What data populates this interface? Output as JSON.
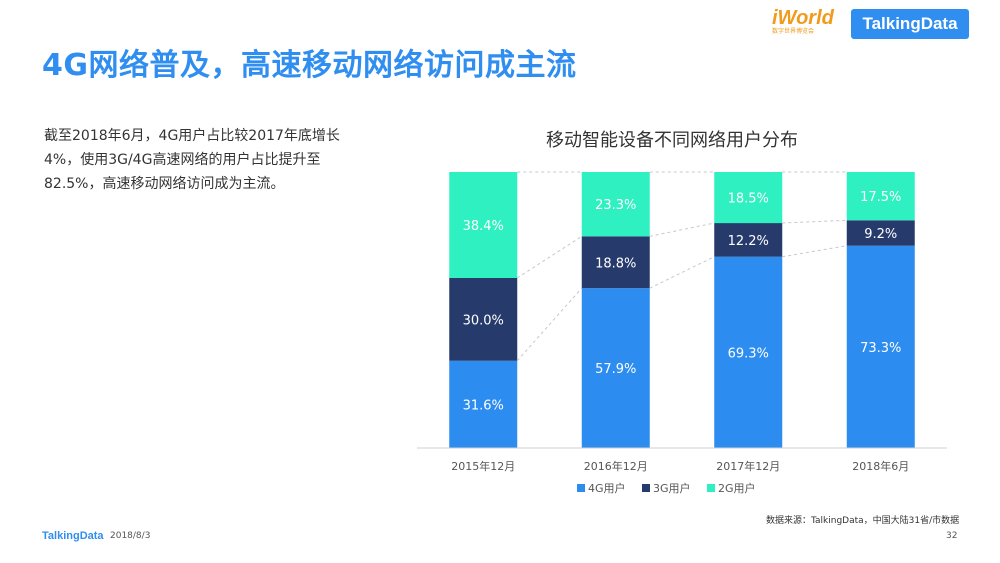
{
  "header": {
    "title": "4G网络普及，高速移动网络访问成主流",
    "logo_iworld": "iWorld",
    "logo_iworld_sub": "数字世界博览会",
    "logo_talkingdata": "TalkingData"
  },
  "description": "截至2018年6月，4G用户占比较2017年底增长4%，使用3G/4G高速网络的用户占比提升至82.5%，高速移动网络访问成为主流。",
  "chart_title": "移动智能设备不同网络用户分布",
  "chart_data": {
    "type": "bar",
    "stacked": true,
    "percent_stacked": true,
    "title": "移动智能设备不同网络用户分布",
    "categories": [
      "2015年12月",
      "2016年12月",
      "2017年12月",
      "2018年6月"
    ],
    "series": [
      {
        "name": "4G用户",
        "color": "#2d8cf0",
        "values": [
          31.6,
          57.9,
          69.3,
          73.3
        ],
        "labels": [
          "31.6%",
          "57.9%",
          "69.3%",
          "73.3%"
        ]
      },
      {
        "name": "3G用户",
        "color": "#263b6c",
        "values": [
          30.0,
          18.8,
          12.2,
          9.2
        ],
        "labels": [
          "30.0%",
          "18.8%",
          "12.2%",
          "9.2%"
        ]
      },
      {
        "name": "2G用户",
        "color": "#2ff0c1",
        "values": [
          38.4,
          23.3,
          18.5,
          17.5
        ],
        "labels": [
          "38.4%",
          "23.3%",
          "18.5%",
          "17.5%"
        ]
      }
    ],
    "ylim": [
      0,
      100
    ],
    "legend_position": "bottom",
    "series_lines": "dashed"
  },
  "footer": {
    "source": "数据来源：TalkingData，中国大陆31省/市数据",
    "logo": "TalkingData",
    "date": "2018/8/3",
    "page": "32"
  }
}
